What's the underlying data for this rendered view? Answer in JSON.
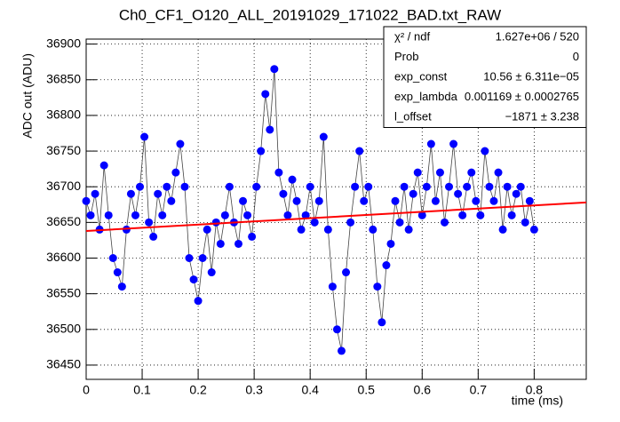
{
  "chart_data": {
    "type": "scatter",
    "title": "Ch0_CF1_O120_ALL_20191029_171022_BAD.txt_RAW",
    "x_label": "time (ms)",
    "y_label": "ADC out (ADU)",
    "xlim": [
      0,
      0.893
    ],
    "ylim": [
      36430,
      36907
    ],
    "xticks": [
      0,
      0.1,
      0.2,
      0.3,
      0.4,
      0.5,
      0.6,
      0.7,
      0.8
    ],
    "yticks": [
      36450,
      36500,
      36550,
      36600,
      36650,
      36700,
      36750,
      36800,
      36850,
      36900
    ],
    "grid": true,
    "series": [
      {
        "color": "#0000ff",
        "x": [
          0,
          0.008,
          0.016,
          0.024,
          0.032,
          0.04,
          0.048,
          0.056,
          0.064,
          0.072,
          0.08,
          0.088,
          0.096,
          0.104,
          0.112,
          0.12,
          0.128,
          0.136,
          0.144,
          0.152,
          0.16,
          0.168,
          0.176,
          0.184,
          0.192,
          0.2,
          0.208,
          0.216,
          0.224,
          0.232,
          0.24,
          0.248,
          0.256,
          0.264,
          0.272,
          0.28,
          0.288,
          0.296,
          0.304,
          0.312,
          0.32,
          0.328,
          0.336,
          0.344,
          0.352,
          0.36,
          0.368,
          0.376,
          0.384,
          0.392,
          0.4,
          0.408,
          0.416,
          0.424,
          0.432,
          0.44,
          0.448,
          0.456,
          0.464,
          0.472,
          0.48,
          0.488,
          0.496,
          0.504,
          0.512,
          0.52,
          0.528,
          0.536,
          0.544,
          0.552,
          0.56,
          0.568,
          0.576,
          0.584,
          0.592,
          0.6,
          0.608,
          0.616,
          0.624,
          0.632,
          0.64,
          0.648,
          0.656,
          0.664,
          0.672,
          0.68,
          0.688,
          0.696,
          0.704,
          0.712,
          0.72,
          0.728,
          0.736,
          0.744,
          0.752,
          0.76,
          0.768,
          0.776,
          0.784,
          0.792,
          0.8
        ],
        "values": [
          36680,
          36660,
          36690,
          36640,
          36730,
          36660,
          36600,
          36580,
          36560,
          36640,
          36690,
          36660,
          36700,
          36770,
          36650,
          36630,
          36690,
          36660,
          36700,
          36680,
          36720,
          36760,
          36700,
          36600,
          36570,
          36540,
          36600,
          36640,
          36580,
          36650,
          36620,
          36660,
          36700,
          36650,
          36620,
          36680,
          36660,
          36630,
          36700,
          36750,
          36830,
          36780,
          36865,
          36720,
          36690,
          36660,
          36710,
          36680,
          36640,
          36660,
          36700,
          36650,
          36680,
          36770,
          36640,
          36560,
          36500,
          36470,
          36580,
          36650,
          36700,
          36750,
          36680,
          36700,
          36640,
          36560,
          36510,
          36590,
          36620,
          36680,
          36650,
          36700,
          36640,
          36690,
          36720,
          36660,
          36700,
          36760,
          36680,
          36720,
          36650,
          36700,
          36760,
          36690,
          36660,
          36700,
          36720,
          36680,
          36660,
          36750,
          36700,
          36680,
          36720,
          36640,
          36700,
          36660,
          36690,
          36700,
          36650,
          36680,
          36640
        ]
      }
    ],
    "fit": {
      "color": "#ff0000",
      "x": [
        0,
        0.893
      ],
      "values": [
        36638,
        36678
      ]
    },
    "stats": [
      {
        "label": "χ² / ndf",
        "value": "1.627e+06 / 520"
      },
      {
        "label": "Prob",
        "value": "0"
      },
      {
        "label": "exp_const",
        "value": "10.56 ± 6.311e−05"
      },
      {
        "label": "exp_lambda",
        "value": "0.001169 ± 0.0002765"
      },
      {
        "label": "l_offset",
        "value": "−1871 ± 3.238"
      }
    ]
  }
}
